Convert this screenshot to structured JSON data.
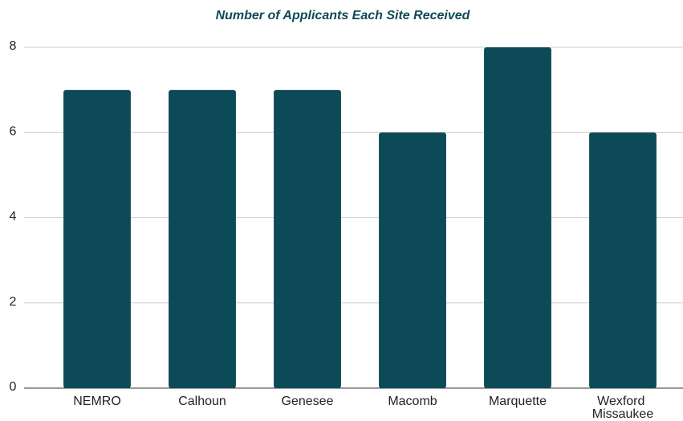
{
  "chart_data": {
    "type": "bar",
    "title": "Number of Applicants Each Site Received",
    "categories": [
      "NEMRO",
      "Calhoun",
      "Genesee",
      "Macomb",
      "Marquette",
      "Wexford Missaukee"
    ],
    "values": [
      7,
      7,
      7,
      6,
      8,
      6
    ],
    "color": "#0d4a57",
    "ylim": [
      0,
      8
    ],
    "yticks": [
      0,
      2,
      4,
      6,
      8
    ],
    "grid": true
  }
}
